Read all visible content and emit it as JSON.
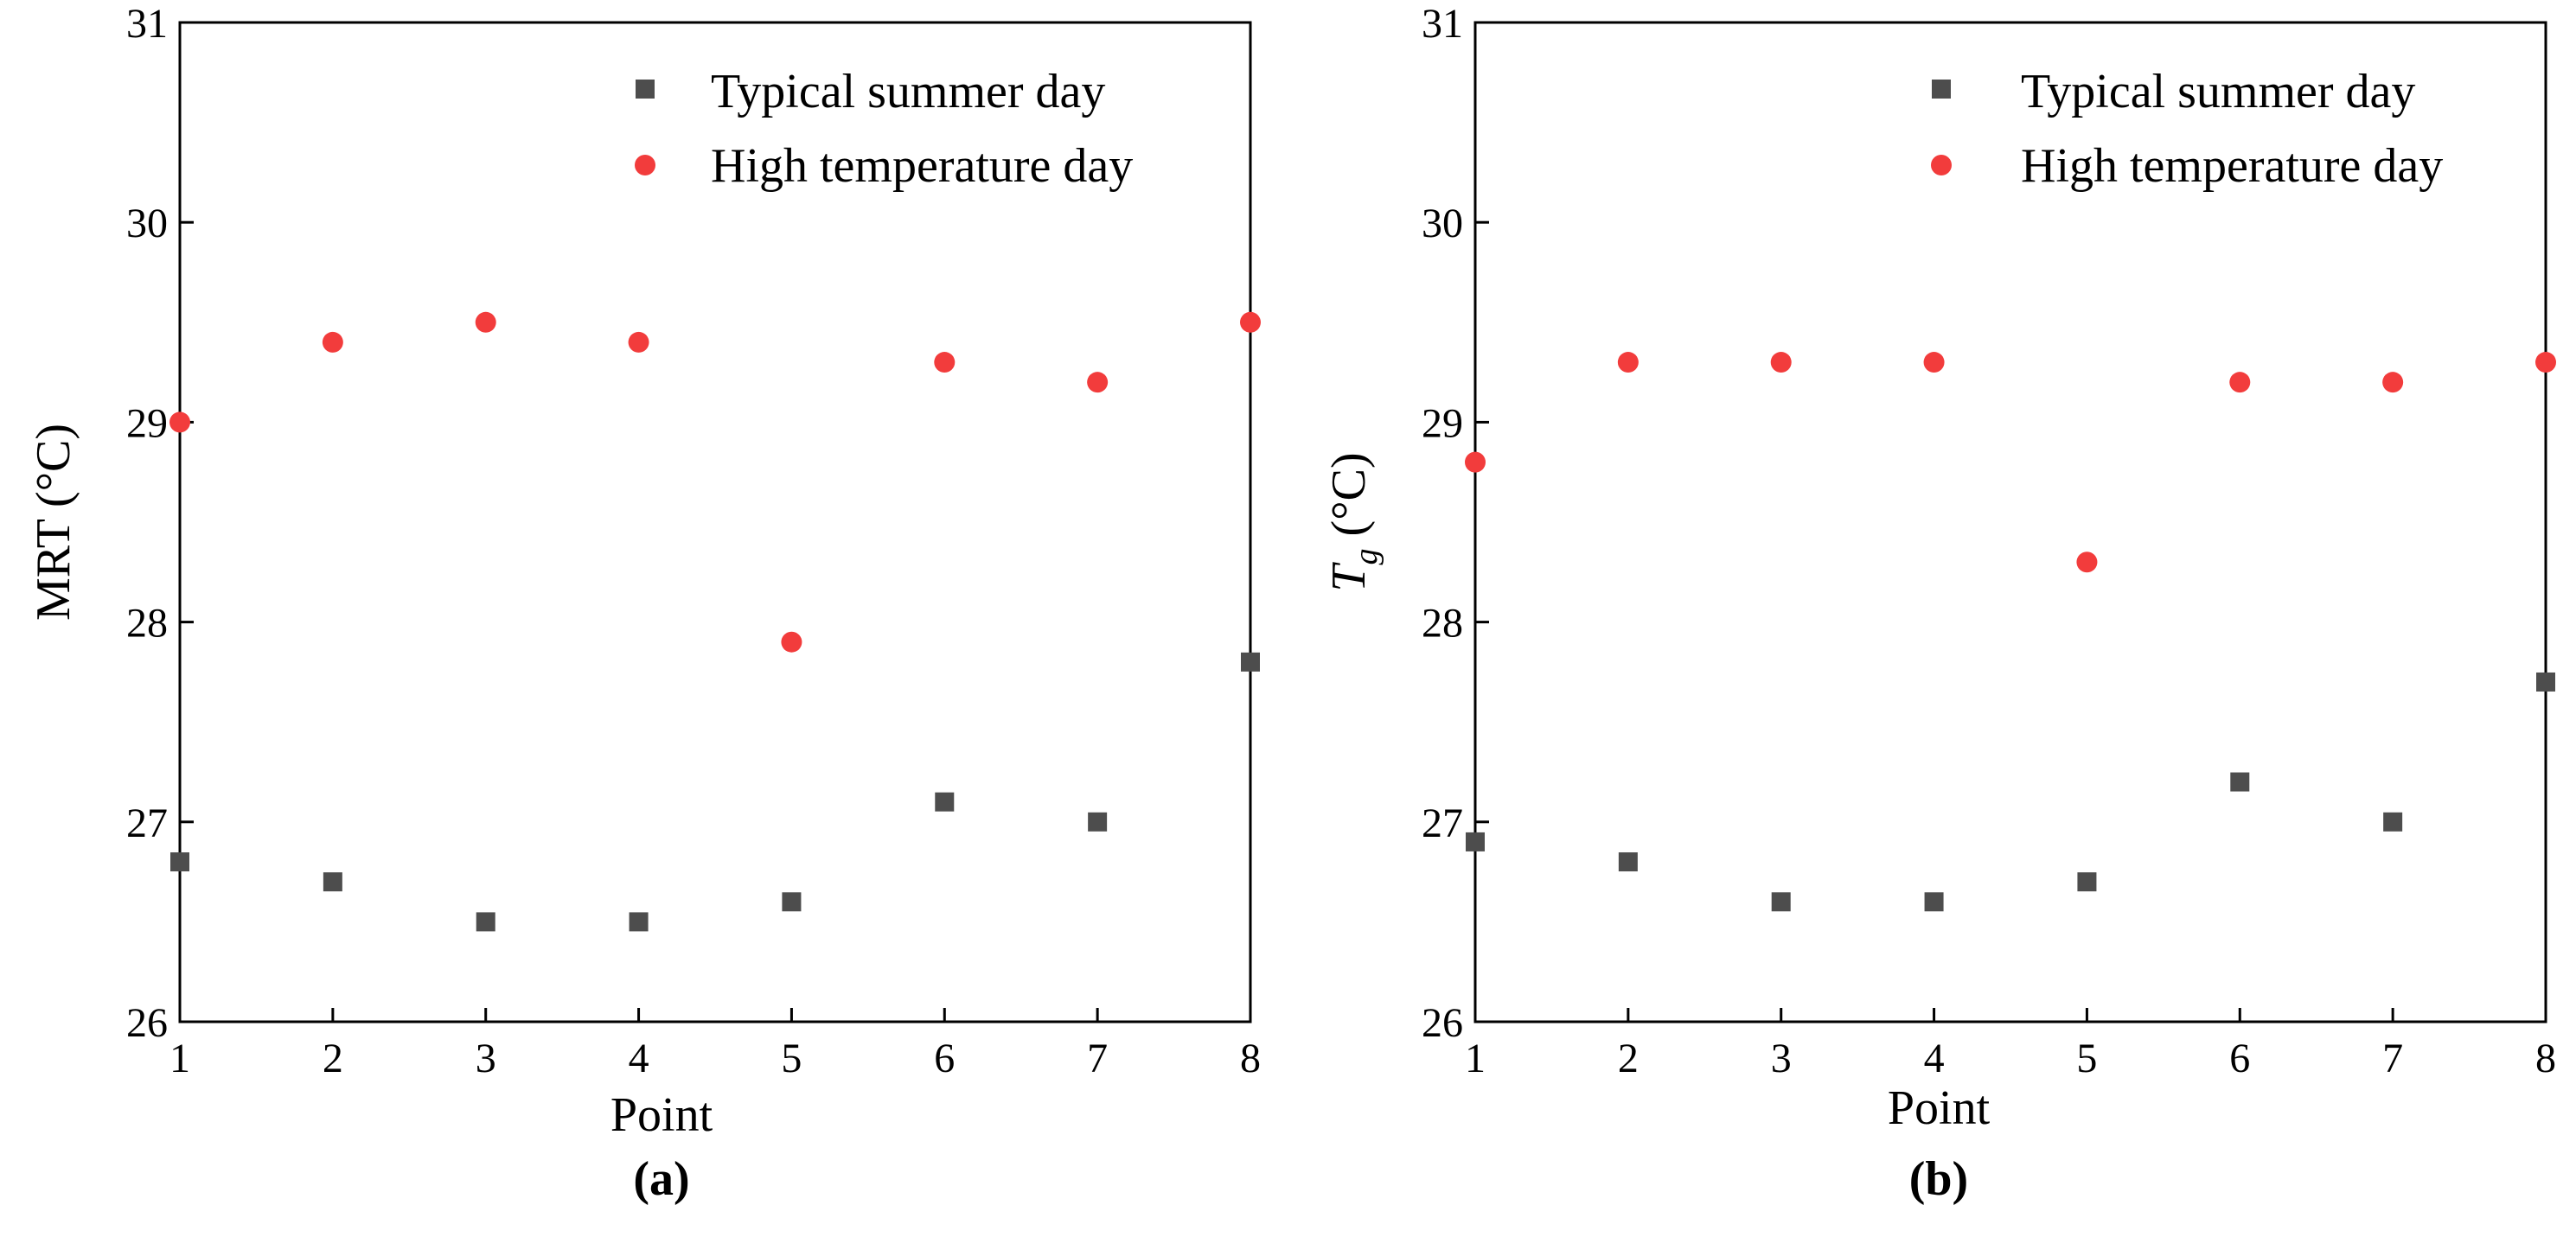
{
  "chart_data": [
    {
      "type": "scatter",
      "panel_label": "(a)",
      "xlabel": "Point",
      "ylabel": "MRT (°C)",
      "xlim": [
        1,
        8
      ],
      "ylim": [
        26,
        31
      ],
      "xticks": [
        1,
        2,
        3,
        4,
        5,
        6,
        7,
        8
      ],
      "yticks": [
        26,
        27,
        28,
        29,
        30,
        31
      ],
      "grid": false,
      "legend_position": "top-right",
      "series": [
        {
          "name": "Typical summer day",
          "marker": "square",
          "color": "#4d4d4d",
          "x": [
            1,
            2,
            3,
            4,
            5,
            6,
            7,
            8
          ],
          "values": [
            26.8,
            26.7,
            26.5,
            26.5,
            26.6,
            27.1,
            27.0,
            27.8
          ]
        },
        {
          "name": "High temperature day",
          "marker": "circle",
          "color": "#f23c3c",
          "x": [
            1,
            2,
            3,
            4,
            5,
            6,
            7,
            8
          ],
          "values": [
            29.0,
            29.4,
            29.5,
            29.4,
            27.9,
            29.3,
            29.2,
            29.5
          ]
        }
      ]
    },
    {
      "type": "scatter",
      "panel_label": "(b)",
      "xlabel": "Point",
      "ylabel_main": "T",
      "ylabel_sub": "g",
      "ylabel_unit": " (°C)",
      "xlim": [
        1,
        8
      ],
      "ylim": [
        26,
        31
      ],
      "xticks": [
        1,
        2,
        3,
        4,
        5,
        6,
        7,
        8
      ],
      "yticks": [
        26,
        27,
        28,
        29,
        30,
        31
      ],
      "grid": false,
      "legend_position": "top-right",
      "series": [
        {
          "name": "Typical summer day",
          "marker": "square",
          "color": "#4d4d4d",
          "x": [
            1,
            2,
            3,
            4,
            5,
            6,
            7,
            8
          ],
          "values": [
            26.9,
            26.8,
            26.6,
            26.6,
            26.7,
            27.2,
            27.0,
            27.7
          ]
        },
        {
          "name": "High temperature day",
          "marker": "circle",
          "color": "#f23c3c",
          "x": [
            1,
            2,
            3,
            4,
            5,
            6,
            7,
            8
          ],
          "values": [
            28.8,
            29.3,
            29.3,
            29.3,
            28.3,
            29.2,
            29.2,
            29.3
          ]
        }
      ]
    }
  ]
}
